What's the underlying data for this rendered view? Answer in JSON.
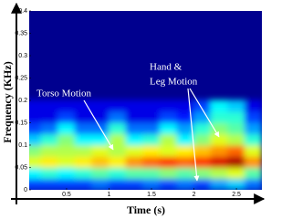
{
  "chart_data": {
    "type": "spectrogram",
    "x_label": "Time (s)",
    "y_label": "Frequency (KHz)",
    "xlim": [
      0.06,
      2.8
    ],
    "ylim": [
      0,
      0.4
    ],
    "xticks": [
      0.5,
      1,
      1.5,
      2,
      2.5
    ],
    "yticks": [
      0,
      0.05,
      0.1,
      0.15,
      0.2,
      0.25,
      0.3,
      0.35,
      0.4
    ],
    "background": "#00008f",
    "x": [
      0.1,
      0.3,
      0.5,
      0.7,
      0.9,
      1.1,
      1.3,
      1.5,
      1.7,
      1.9,
      2.1,
      2.3,
      2.5,
      2.7
    ],
    "y": [
      0.0125,
      0.0375,
      0.0625,
      0.0875,
      0.1125,
      0.1375,
      0.1625,
      0.1875
    ],
    "values": [
      [
        0.1,
        0.1,
        0.1,
        0.1,
        0.15,
        0.1,
        0.1,
        0.15,
        0.1,
        0.15,
        0.1,
        0.2,
        0.25,
        0.15
      ],
      [
        0.3,
        0.35,
        0.3,
        0.35,
        0.4,
        0.35,
        0.4,
        0.4,
        0.45,
        0.4,
        0.45,
        0.5,
        0.55,
        0.4
      ],
      [
        0.55,
        0.6,
        0.55,
        0.6,
        0.65,
        0.6,
        0.7,
        0.75,
        0.8,
        0.75,
        0.8,
        0.9,
        0.95,
        0.7
      ],
      [
        0.45,
        0.5,
        0.5,
        0.5,
        0.55,
        0.5,
        0.55,
        0.6,
        0.55,
        0.6,
        0.65,
        0.7,
        0.75,
        0.55
      ],
      [
        0.25,
        0.35,
        0.45,
        0.3,
        0.3,
        0.5,
        0.3,
        0.35,
        0.5,
        0.3,
        0.45,
        0.55,
        0.5,
        0.35
      ],
      [
        0.1,
        0.15,
        0.3,
        0.15,
        0.15,
        0.35,
        0.15,
        0.15,
        0.3,
        0.2,
        0.35,
        0.45,
        0.4,
        0.2
      ],
      [
        0,
        0,
        0.1,
        0,
        0,
        0.15,
        0,
        0,
        0.1,
        0.05,
        0.2,
        0.35,
        0.35,
        0.1
      ],
      [
        0,
        0,
        0,
        0,
        0,
        0,
        0,
        0,
        0,
        0,
        0.1,
        0.3,
        0.25,
        0
      ]
    ],
    "annotations": [
      {
        "lines": [
          "Torso Motion"
        ]
      },
      {
        "lines": [
          "Hand  &",
          "Leg Motion"
        ]
      }
    ]
  }
}
